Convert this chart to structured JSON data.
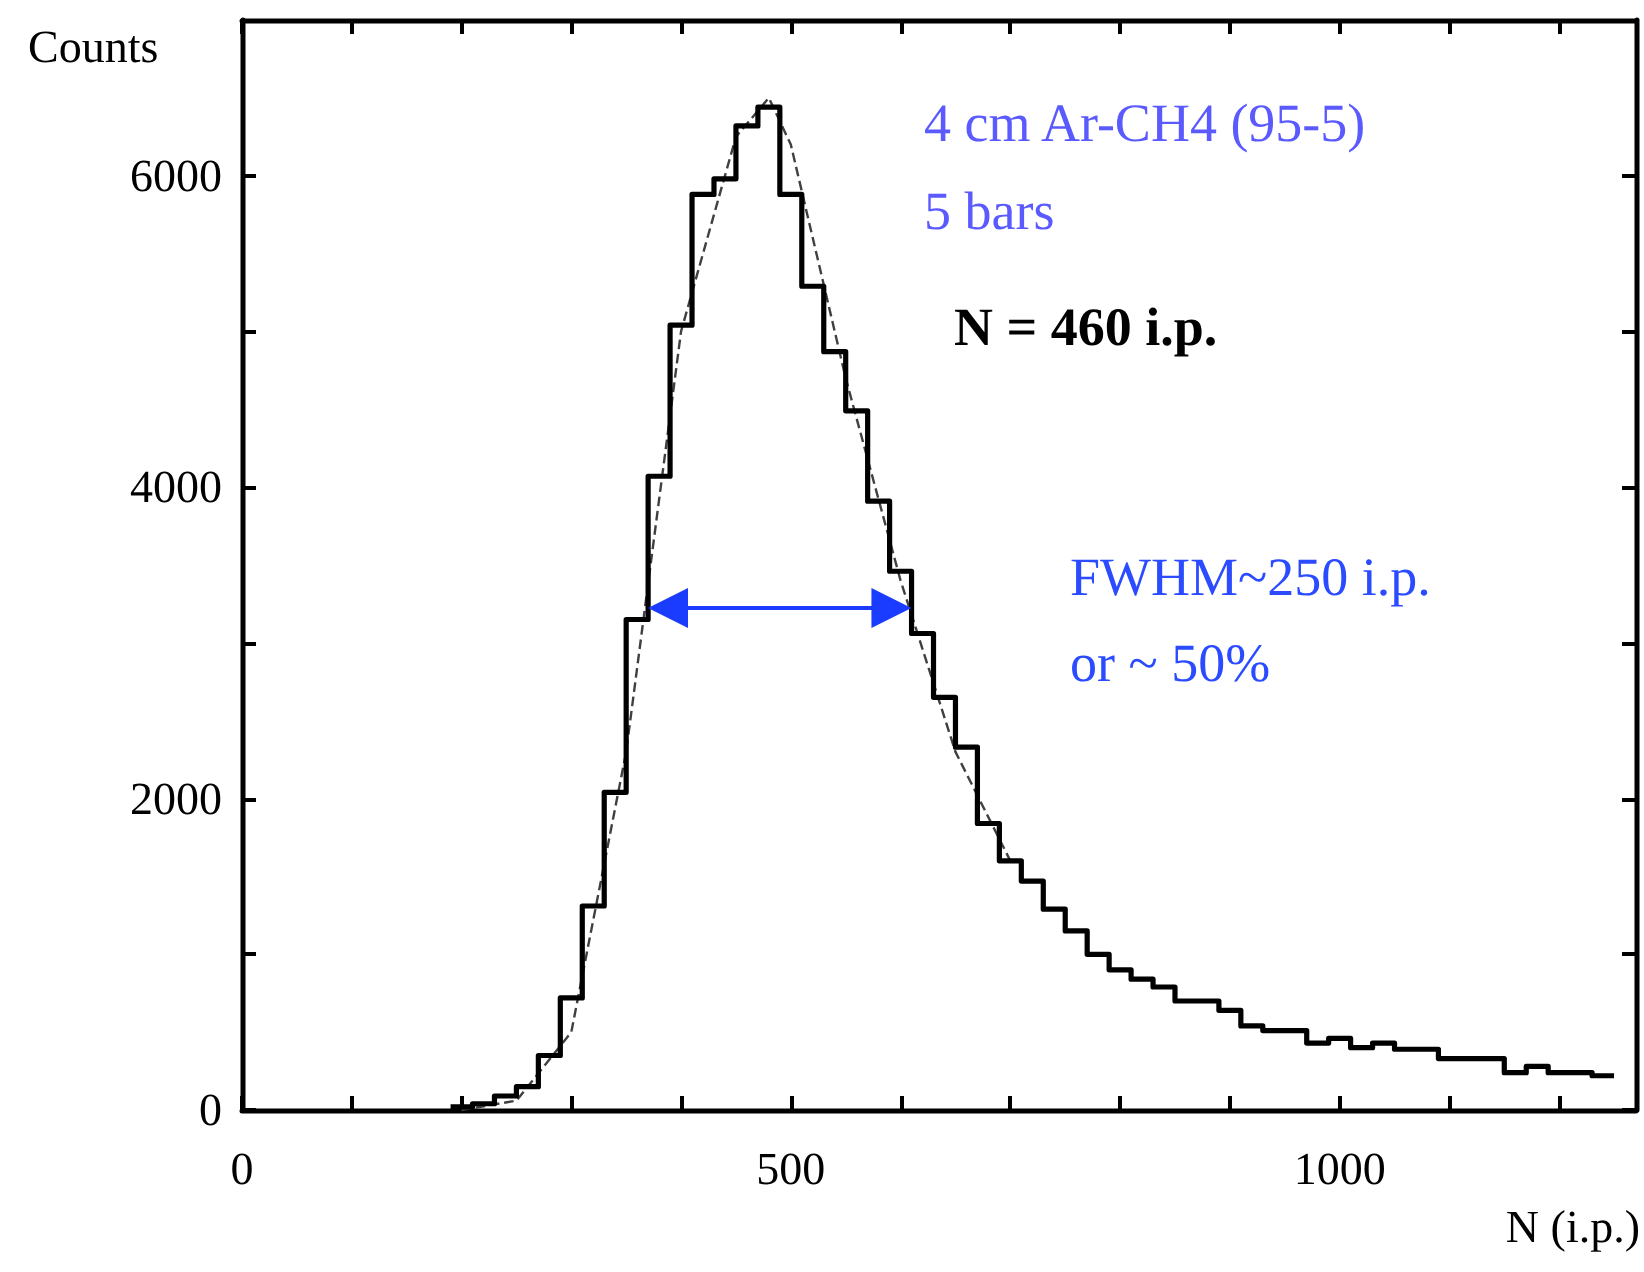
{
  "chart_data": {
    "type": "step",
    "xlabel": "N (i.p.)",
    "ylabel": "Counts",
    "annotations": [
      "4 cm Ar-CH4 (95-5)",
      "5 bars",
      "N = 460 i.p.",
      "FWHM~250 i.p.",
      "or ~ 50%"
    ],
    "series": [
      {
        "color": "#000000",
        "x": [
          190,
          210,
          230,
          250,
          270,
          290,
          310,
          330,
          350,
          370,
          390,
          410,
          430,
          450,
          470,
          490,
          510,
          530,
          550,
          570,
          590,
          610,
          630,
          650,
          670,
          690,
          710,
          730,
          750,
          770,
          790,
          810,
          830,
          850,
          870,
          890,
          910,
          930,
          950,
          970,
          990,
          1010,
          1030,
          1050,
          1070,
          1090,
          1110,
          1130,
          1150,
          1170,
          1190,
          1210,
          1230,
          1250
        ],
        "values": [
          20,
          40,
          90,
          150,
          350,
          720,
          1310,
          2040,
          3150,
          4070,
          5040,
          5880,
          5980,
          6320,
          6440,
          5880,
          5290,
          4870,
          4490,
          3910,
          3460,
          3060,
          2650,
          2330,
          1840,
          1600,
          1470,
          1290,
          1150,
          1000,
          900,
          840,
          790,
          700,
          700,
          640,
          540,
          510,
          510,
          430,
          460,
          400,
          430,
          390,
          390,
          330,
          330,
          330,
          240,
          280,
          240,
          240,
          220,
          220
        ]
      },
      {
        "type": "line",
        "color": "#404040",
        "line_style": "dashed",
        "marker": "none",
        "x": [
          200,
          250,
          300,
          350,
          400,
          450,
          480,
          500,
          550,
          600,
          650,
          700
        ],
        "values": [
          0,
          60,
          500,
          2300,
          5000,
          6250,
          6500,
          6200,
          4700,
          3400,
          2300,
          1600
        ]
      }
    ],
    "xlim": [
      0,
      1270
    ],
    "ylim": [
      0,
      7000
    ],
    "xticks": [
      0,
      {
        "value": 100,
        "label": null
      },
      {
        "value": 200,
        "label": null
      },
      {
        "value": 300,
        "label": null
      },
      {
        "value": 400,
        "label": null
      },
      500,
      {
        "value": 600,
        "label": null
      },
      {
        "value": 700,
        "label": null
      },
      {
        "value": 800,
        "label": null
      },
      {
        "value": 900,
        "label": null
      },
      1000,
      {
        "value": 1100,
        "label": null
      },
      {
        "value": 1200,
        "label": null
      }
    ],
    "yticks": [
      0,
      {
        "value": 1000,
        "label": null
      },
      2000,
      {
        "value": 3000,
        "label": null
      },
      4000,
      {
        "value": 5000,
        "label": null
      },
      6000
    ],
    "grid": false
  }
}
